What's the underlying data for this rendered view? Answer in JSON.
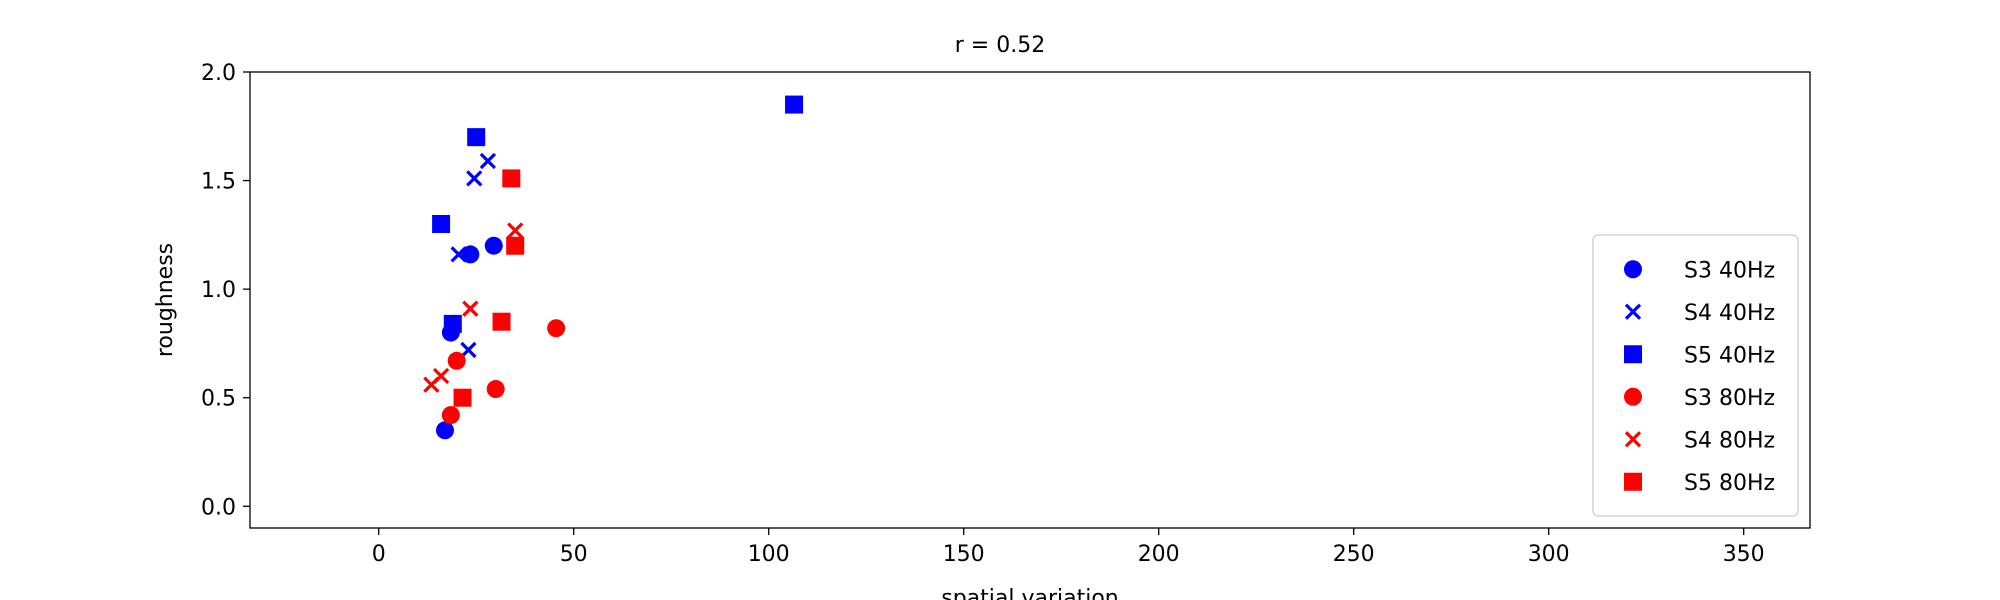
{
  "chart_data": {
    "type": "scatter",
    "title": "r = 0.52",
    "xlabel": "spatial variation",
    "ylabel": "roughness",
    "xlim": [
      -33,
      367
    ],
    "ylim": [
      -0.1,
      2.0
    ],
    "x_ticks": [
      0,
      50,
      100,
      150,
      200,
      250,
      300,
      350
    ],
    "y_ticks": [
      0.0,
      0.5,
      1.0,
      1.5,
      2.0
    ],
    "x_tick_labels": [
      "0",
      "50",
      "100",
      "150",
      "200",
      "250",
      "300",
      "350"
    ],
    "y_tick_labels": [
      "0.0",
      "0.5",
      "1.0",
      "1.5",
      "2.0"
    ],
    "grid": false,
    "legend_position": "lower-right",
    "series": [
      {
        "name": "S3 40Hz",
        "color": "#0000ff",
        "marker": "circle",
        "points": [
          [
            17,
            0.35
          ],
          [
            18.5,
            0.8
          ],
          [
            23.5,
            1.16
          ],
          [
            29.5,
            1.2
          ]
        ]
      },
      {
        "name": "S4 40Hz",
        "color": "#0000ff",
        "marker": "x",
        "points": [
          [
            20.5,
            1.16
          ],
          [
            23,
            0.72
          ],
          [
            24.5,
            1.51
          ],
          [
            28,
            1.59
          ]
        ]
      },
      {
        "name": "S5 40Hz",
        "color": "#0000ff",
        "marker": "square",
        "points": [
          [
            16,
            1.3
          ],
          [
            19,
            0.84
          ],
          [
            25,
            1.7
          ],
          [
            106.5,
            1.85
          ]
        ]
      },
      {
        "name": "S3 80Hz",
        "color": "#ff0000",
        "marker": "circle",
        "points": [
          [
            18.5,
            0.42
          ],
          [
            20,
            0.67
          ],
          [
            30,
            0.54
          ],
          [
            45.5,
            0.82
          ]
        ]
      },
      {
        "name": "S4 80Hz",
        "color": "#ff0000",
        "marker": "x",
        "points": [
          [
            13.5,
            0.56
          ],
          [
            16,
            0.6
          ],
          [
            23.5,
            0.91
          ],
          [
            35,
            1.27
          ]
        ]
      },
      {
        "name": "S5 80Hz",
        "color": "#ff0000",
        "marker": "square",
        "points": [
          [
            21.5,
            0.5
          ],
          [
            31.5,
            0.85
          ],
          [
            34,
            1.51
          ],
          [
            35,
            1.2
          ]
        ]
      }
    ]
  }
}
